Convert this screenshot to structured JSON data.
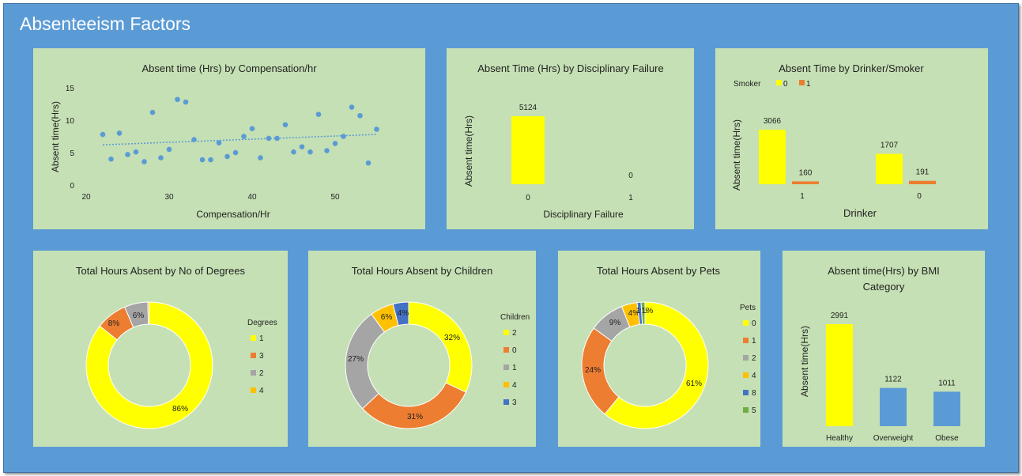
{
  "dashboard": {
    "title": "Absenteeism Factors"
  },
  "colors": {
    "background": "#5b9bd5",
    "panel": "#c5e0b4",
    "yellow": "#ffff00",
    "orange": "#ed7d31",
    "gray": "#a5a5a5",
    "gold": "#ffc000",
    "blue": "#4472c4",
    "green": "#70ad47",
    "lightblue": "#5b9bd5"
  },
  "chart_data": [
    {
      "id": "compensation",
      "type": "scatter",
      "title": "Absent time (Hrs) by Compensation/hr",
      "xlabel": "Compensation/Hr",
      "ylabel": "Absent time(Hrs)",
      "xlim": [
        20,
        56
      ],
      "ylim": [
        0,
        15
      ],
      "xticks": [
        "20",
        "30",
        "40",
        "50"
      ],
      "yticks": [
        "0",
        "5",
        "10",
        "15"
      ],
      "trendline": {
        "x": [
          22,
          55
        ],
        "y": [
          6.2,
          7.8
        ],
        "style": "dotted"
      },
      "points": [
        {
          "x": 22,
          "y": 7.8
        },
        {
          "x": 23,
          "y": 4.0
        },
        {
          "x": 24,
          "y": 8.0
        },
        {
          "x": 25,
          "y": 4.7
        },
        {
          "x": 26,
          "y": 5.1
        },
        {
          "x": 27,
          "y": 3.6
        },
        {
          "x": 28,
          "y": 11.2
        },
        {
          "x": 29,
          "y": 4.2
        },
        {
          "x": 30,
          "y": 5.5
        },
        {
          "x": 31,
          "y": 13.2
        },
        {
          "x": 32,
          "y": 12.8
        },
        {
          "x": 33,
          "y": 7.0
        },
        {
          "x": 34,
          "y": 3.9
        },
        {
          "x": 35,
          "y": 3.9
        },
        {
          "x": 36,
          "y": 6.5
        },
        {
          "x": 37,
          "y": 4.4
        },
        {
          "x": 38,
          "y": 5.0
        },
        {
          "x": 39,
          "y": 7.5
        },
        {
          "x": 40,
          "y": 8.7
        },
        {
          "x": 41,
          "y": 4.2
        },
        {
          "x": 42,
          "y": 7.2
        },
        {
          "x": 43,
          "y": 7.2
        },
        {
          "x": 44,
          "y": 9.3
        },
        {
          "x": 45,
          "y": 5.1
        },
        {
          "x": 46,
          "y": 5.9
        },
        {
          "x": 47,
          "y": 5.1
        },
        {
          "x": 48,
          "y": 10.9
        },
        {
          "x": 49,
          "y": 5.3
        },
        {
          "x": 50,
          "y": 6.4
        },
        {
          "x": 51,
          "y": 7.5
        },
        {
          "x": 52,
          "y": 12.0
        },
        {
          "x": 53,
          "y": 10.7
        },
        {
          "x": 54,
          "y": 3.4
        },
        {
          "x": 55,
          "y": 8.6
        }
      ]
    },
    {
      "id": "disciplinary",
      "type": "bar",
      "title": "Absent Time (Hrs) by Disciplinary Failure",
      "xlabel": "Disciplinary Failure",
      "ylabel": "Absent time(Hrs)",
      "categories": [
        "0",
        "1"
      ],
      "values": [
        5124,
        0
      ],
      "labels": [
        "5124",
        "0"
      ],
      "color": "#ffff00"
    },
    {
      "id": "drinker",
      "type": "bar",
      "title": "Absent Time by Drinker/Smoker",
      "legend_title": "Smoker",
      "xlabel": "Drinker",
      "ylabel": "Absent time(Hrs)",
      "categories": [
        "1",
        "0"
      ],
      "series": [
        {
          "name": "0",
          "values": [
            3066,
            1707
          ],
          "labels": [
            "3066",
            "1707"
          ],
          "color": "#ffff00"
        },
        {
          "name": "1",
          "values": [
            160,
            191
          ],
          "labels": [
            "160",
            "191"
          ],
          "color": "#ed7d31"
        }
      ]
    },
    {
      "id": "degrees",
      "type": "pie",
      "donut": true,
      "title": "Total Hours Absent by No of Degrees",
      "legend_title": "Degrees",
      "slices": [
        {
          "name": "1",
          "value": 86,
          "label": "86%",
          "color": "#ffff00"
        },
        {
          "name": "3",
          "value": 8,
          "label": "8%",
          "color": "#ed7d31"
        },
        {
          "name": "2",
          "value": 6,
          "label": "6%",
          "color": "#a5a5a5"
        },
        {
          "name": "4",
          "value": 0.4,
          "label": "",
          "color": "#ffc000"
        }
      ]
    },
    {
      "id": "children",
      "type": "pie",
      "donut": true,
      "title": "Total Hours Absent by Children",
      "legend_title": "Children",
      "slices": [
        {
          "name": "2",
          "value": 32,
          "label": "32%",
          "color": "#ffff00"
        },
        {
          "name": "0",
          "value": 31,
          "label": "31%",
          "color": "#ed7d31"
        },
        {
          "name": "1",
          "value": 27,
          "label": "27%",
          "color": "#a5a5a5"
        },
        {
          "name": "4",
          "value": 6,
          "label": "6%",
          "color": "#ffc000"
        },
        {
          "name": "3",
          "value": 4,
          "label": "4%",
          "color": "#4472c4"
        }
      ]
    },
    {
      "id": "pets",
      "type": "pie",
      "donut": true,
      "title": "Total Hours Absent by Pets",
      "legend_title": "Pets",
      "slices": [
        {
          "name": "0",
          "value": 61,
          "label": "61%",
          "color": "#ffff00"
        },
        {
          "name": "1",
          "value": 24,
          "label": "24%",
          "color": "#ed7d31"
        },
        {
          "name": "2",
          "value": 9,
          "label": "9%",
          "color": "#a5a5a5"
        },
        {
          "name": "4",
          "value": 4,
          "label": "4%",
          "color": "#ffc000"
        },
        {
          "name": "8",
          "value": 1,
          "label": "1%",
          "color": "#4472c4"
        },
        {
          "name": "5",
          "value": 1,
          "label": "1%",
          "color": "#70ad47"
        }
      ]
    },
    {
      "id": "bmi",
      "type": "bar",
      "title": "Absent time(Hrs) by BMI Category",
      "xlabel": "",
      "ylabel": "Absent time(Hrs)",
      "categories": [
        "Healthy",
        "Overweight",
        "Obese"
      ],
      "values": [
        2991,
        1122,
        1011
      ],
      "labels": [
        "2991",
        "1122",
        "1011"
      ],
      "colors": [
        "#ffff00",
        "#5b9bd5",
        "#5b9bd5"
      ]
    }
  ]
}
